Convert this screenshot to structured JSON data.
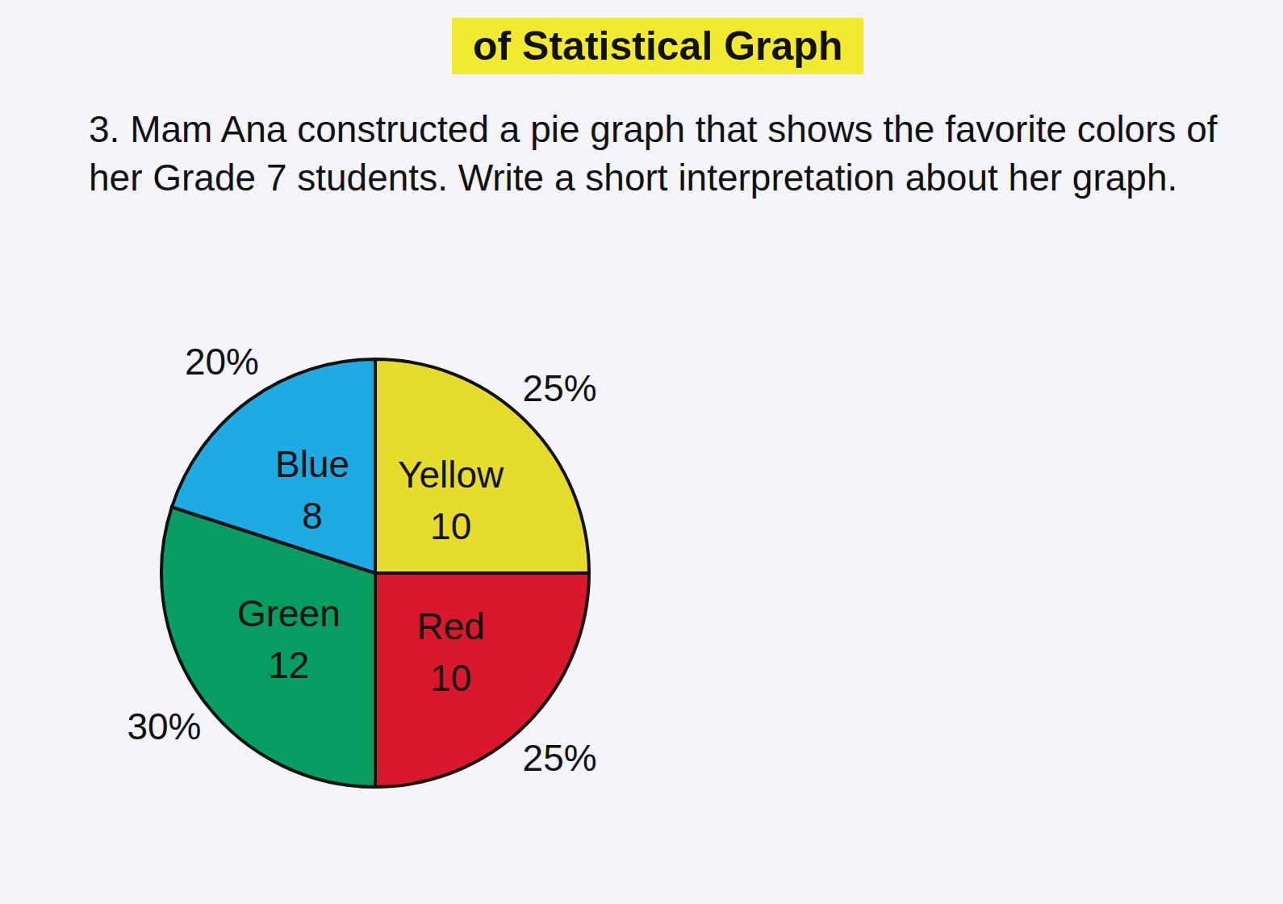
{
  "chart_data": {
    "type": "pie",
    "title": "of Statistical Graph",
    "subtitle": "3. Mam Ana constructed a pie graph that shows the favorite colors of her Grade 7 students. Write a short interpretation about her graph.",
    "categories": [
      "Yellow",
      "Red",
      "Green",
      "Blue"
    ],
    "values": [
      25,
      25,
      30,
      20
    ],
    "value_labels": [
      "25%",
      "25%",
      "30%",
      "20%"
    ],
    "counts": [
      10,
      10,
      12,
      8
    ],
    "colors": [
      "#e6dc2b",
      "#d8192b",
      "#079c60",
      "#1eaae2"
    ],
    "data_labels": true
  }
}
